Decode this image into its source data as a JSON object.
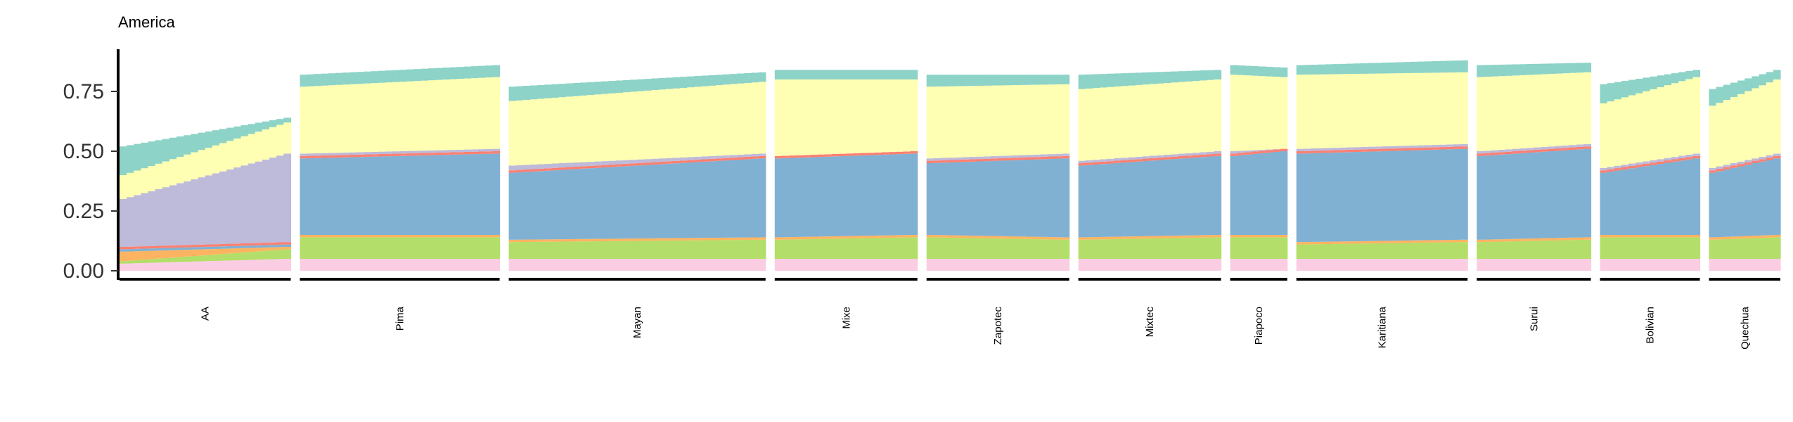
{
  "chart_data": {
    "type": "bar",
    "title": "America",
    "xlabel": "",
    "ylabel": "",
    "ylim": [
      0,
      0.9
    ],
    "yticks": [
      0.0,
      0.25,
      0.5,
      0.75
    ],
    "ytick_labels": [
      "0.00",
      "0.25",
      "0.50",
      "0.75"
    ],
    "grid": false,
    "legend": "none",
    "component_colors": [
      "#FBCDE3",
      "#B3DE69",
      "#FDB462",
      "#80B1D3",
      "#FB8072",
      "#BEBADA",
      "#FFFFB3",
      "#8DD3C7"
    ],
    "groups": [
      {
        "label": "AA",
        "n": 24
      },
      {
        "label": "Pima",
        "n": 28
      },
      {
        "label": "Mayan",
        "n": 36
      },
      {
        "label": "Mixe",
        "n": 20
      },
      {
        "label": "Zapotec",
        "n": 20
      },
      {
        "label": "Mixtec",
        "n": 20
      },
      {
        "label": "Piapoco",
        "n": 8
      },
      {
        "label": "Karitiana",
        "n": 24
      },
      {
        "label": "Surui",
        "n": 16
      },
      {
        "label": "Bolivian",
        "n": 14
      },
      {
        "label": "Quechua",
        "n": 10
      }
    ],
    "series_profiles": {
      "AA": {
        "start": [
          0.03,
          0.01,
          0.04,
          0.01,
          0.01,
          0.2,
          0.1,
          0.12
        ],
        "end": [
          0.05,
          0.04,
          0.01,
          0.01,
          0.01,
          0.37,
          0.13,
          0.02
        ]
      },
      "Pima": {
        "start": [
          0.05,
          0.09,
          0.01,
          0.32,
          0.01,
          0.01,
          0.28,
          0.05
        ],
        "end": [
          0.05,
          0.09,
          0.01,
          0.34,
          0.01,
          0.01,
          0.3,
          0.05
        ]
      },
      "Mayan": {
        "start": [
          0.05,
          0.07,
          0.01,
          0.28,
          0.01,
          0.02,
          0.27,
          0.06
        ],
        "end": [
          0.05,
          0.08,
          0.01,
          0.33,
          0.01,
          0.01,
          0.3,
          0.04
        ]
      },
      "Mixe": {
        "start": [
          0.05,
          0.08,
          0.01,
          0.33,
          0.01,
          0.0,
          0.32,
          0.04
        ],
        "end": [
          0.05,
          0.09,
          0.01,
          0.34,
          0.01,
          0.0,
          0.3,
          0.04
        ]
      },
      "Zapotec": {
        "start": [
          0.05,
          0.09,
          0.01,
          0.3,
          0.01,
          0.01,
          0.3,
          0.05
        ],
        "end": [
          0.05,
          0.08,
          0.01,
          0.33,
          0.01,
          0.01,
          0.29,
          0.04
        ]
      },
      "Mixtec": {
        "start": [
          0.05,
          0.08,
          0.01,
          0.3,
          0.01,
          0.01,
          0.3,
          0.06
        ],
        "end": [
          0.05,
          0.09,
          0.01,
          0.33,
          0.01,
          0.01,
          0.3,
          0.04
        ]
      },
      "Piapoco": {
        "start": [
          0.05,
          0.09,
          0.01,
          0.33,
          0.01,
          0.01,
          0.32,
          0.04
        ],
        "end": [
          0.05,
          0.09,
          0.01,
          0.35,
          0.01,
          0.0,
          0.3,
          0.04
        ]
      },
      "Karitiana": {
        "start": [
          0.05,
          0.06,
          0.01,
          0.37,
          0.01,
          0.01,
          0.31,
          0.04
        ],
        "end": [
          0.05,
          0.07,
          0.01,
          0.38,
          0.01,
          0.01,
          0.3,
          0.05
        ]
      },
      "Surui": {
        "start": [
          0.05,
          0.07,
          0.01,
          0.35,
          0.01,
          0.01,
          0.31,
          0.05
        ],
        "end": [
          0.05,
          0.08,
          0.01,
          0.37,
          0.01,
          0.01,
          0.3,
          0.04
        ]
      },
      "Bolivian": {
        "start": [
          0.05,
          0.09,
          0.01,
          0.26,
          0.01,
          0.01,
          0.27,
          0.08
        ],
        "end": [
          0.05,
          0.09,
          0.01,
          0.32,
          0.01,
          0.01,
          0.32,
          0.03
        ]
      },
      "Quechua": {
        "start": [
          0.05,
          0.08,
          0.01,
          0.27,
          0.01,
          0.01,
          0.26,
          0.07
        ],
        "end": [
          0.05,
          0.09,
          0.01,
          0.32,
          0.01,
          0.01,
          0.31,
          0.04
        ]
      }
    }
  }
}
